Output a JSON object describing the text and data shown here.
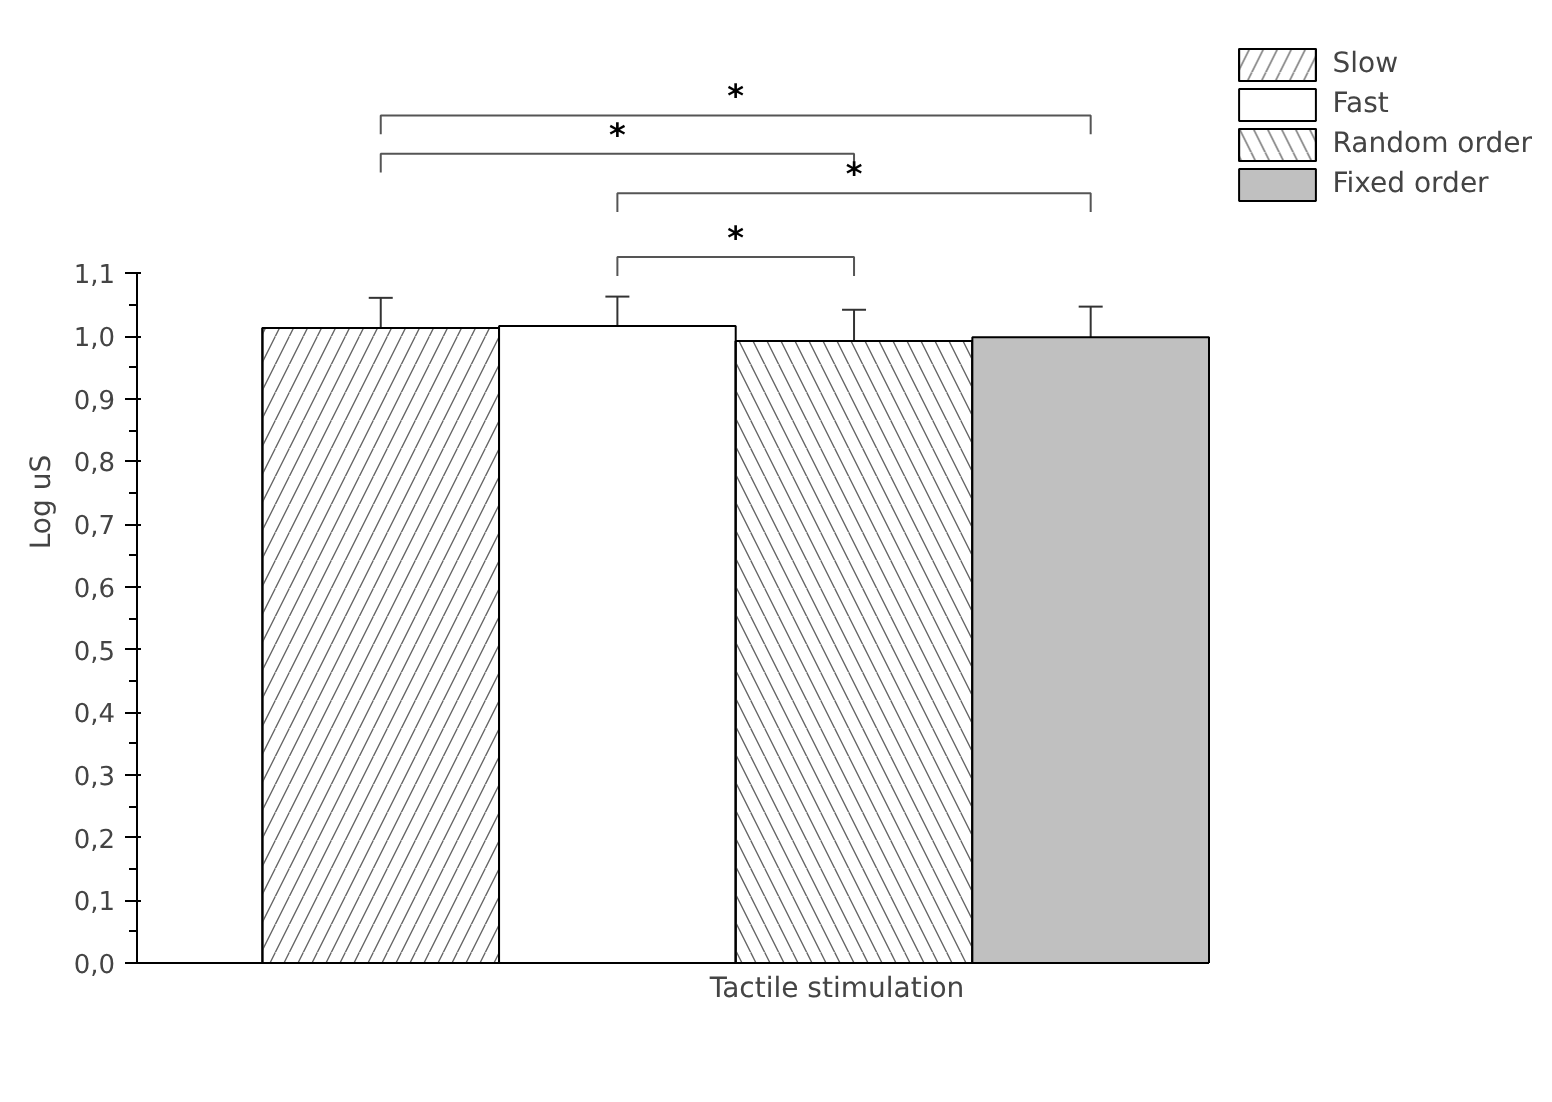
{
  "chart_data": {
    "type": "bar",
    "xlabel": "Tactile stimulation",
    "ylabel": "Log uS",
    "categories": [
      null
    ],
    "series": [
      {
        "name": "Slow",
        "color": "#ffffff",
        "values": [
          1.013
        ],
        "errors": [
          0.048
        ]
      },
      {
        "name": "Fast",
        "color": "#ffffff",
        "values": [
          1.016
        ],
        "errors": [
          0.047
        ]
      },
      {
        "name": "Random order",
        "color": "#ffffff",
        "values": [
          0.992
        ],
        "errors": [
          0.05
        ]
      },
      {
        "name": "Fixed order",
        "color": "#c0c0c0",
        "values": [
          0.998
        ],
        "errors": [
          0.049
        ]
      }
    ],
    "ylim": [
      0,
      1.1
    ],
    "yticks": [
      {
        "value": 0,
        "label": "0,0"
      },
      {
        "value": 0.1,
        "label": "0,1"
      },
      {
        "value": 0.2,
        "label": "0,2"
      },
      {
        "value": 0.3,
        "label": "0,3"
      },
      {
        "value": 0.4,
        "label": "0,4"
      },
      {
        "value": 0.5,
        "label": "0,5"
      },
      {
        "value": 0.6,
        "label": "0,6"
      },
      {
        "value": 0.7,
        "label": "0,7"
      },
      {
        "value": 0.8,
        "label": "0,8"
      },
      {
        "value": 0.9,
        "label": "0,9"
      },
      {
        "value": 1.0,
        "label": "1,0"
      },
      {
        "value": 1.1,
        "label": "1,1"
      }
    ],
    "annotations": [
      "*",
      "*",
      "*",
      "*"
    ],
    "grid": false,
    "legend": "top right"
  }
}
